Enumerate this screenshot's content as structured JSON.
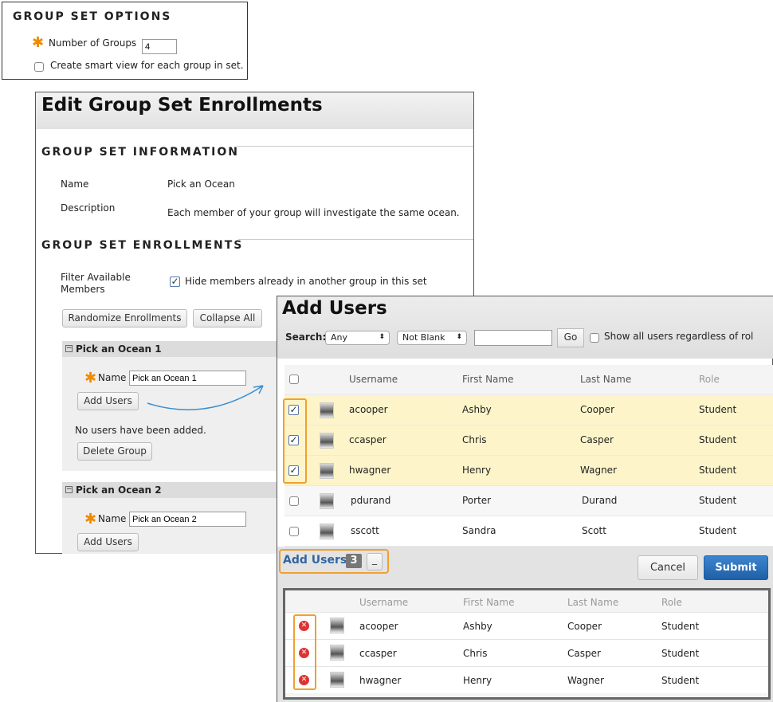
{
  "group_set_options": {
    "title": "GROUP SET OPTIONS",
    "number_label": "Number of Groups",
    "number_value": "4",
    "smart_view_label": "Create smart view for each group in set."
  },
  "edit": {
    "title": "Edit Group Set Enrollments",
    "info_heading": "GROUP SET INFORMATION",
    "name_label": "Name",
    "name_value": "Pick an Ocean",
    "desc_label": "Description",
    "desc_value": "Each member of your group will investigate the same ocean.",
    "enroll_heading": "GROUP SET ENROLLMENTS",
    "filter_label": "Filter Available Members",
    "filter_option": "Hide members already in another group in this set",
    "randomize": "Randomize Enrollments",
    "collapse": "Collapse All",
    "groups": [
      {
        "title": "Pick an Ocean 1",
        "name_label": "Name",
        "name_value": "Pick an Ocean 1",
        "add_users": "Add Users",
        "empty": "No users have been added.",
        "delete": "Delete Group"
      },
      {
        "title": "Pick an Ocean 2",
        "name_label": "Name",
        "name_value": "Pick an Ocean 2",
        "add_users": "Add Users"
      }
    ]
  },
  "add_users": {
    "title": "Add Users",
    "search_label": "Search:",
    "field_select": "Any",
    "cond_select": "Not Blank",
    "search_value": "",
    "go": "Go",
    "show_all": "Show all users regardless of role",
    "columns": [
      "Username",
      "First Name",
      "Last Name",
      "Role"
    ],
    "rows": [
      {
        "username": "acooper",
        "first": "Ashby",
        "last": "Cooper",
        "role": "Student",
        "checked": true
      },
      {
        "username": "ccasper",
        "first": "Chris",
        "last": "Casper",
        "role": "Student",
        "checked": true
      },
      {
        "username": "hwagner",
        "first": "Henry",
        "last": "Wagner",
        "role": "Student",
        "checked": true
      },
      {
        "username": "pdurand",
        "first": "Porter",
        "last": "Durand",
        "role": "Student",
        "checked": false
      },
      {
        "username": "sscott",
        "first": "Sandra",
        "last": "Scott",
        "role": "Student",
        "checked": false
      }
    ],
    "selected_label": "Add Users",
    "selected_count": "3",
    "collapse_btn": "_",
    "cancel": "Cancel",
    "submit": "Submit",
    "selected": [
      {
        "username": "acooper",
        "first": "Ashby",
        "last": "Cooper",
        "role": "Student"
      },
      {
        "username": "ccasper",
        "first": "Chris",
        "last": "Casper",
        "role": "Student"
      },
      {
        "username": "hwagner",
        "first": "Henry",
        "last": "Wagner",
        "role": "Student"
      }
    ]
  },
  "colors": {
    "highlight": "#fdf5c9",
    "accent_orange": "#f0a030",
    "submit_blue": "#2a6fb8",
    "link_blue": "#3366a0"
  }
}
